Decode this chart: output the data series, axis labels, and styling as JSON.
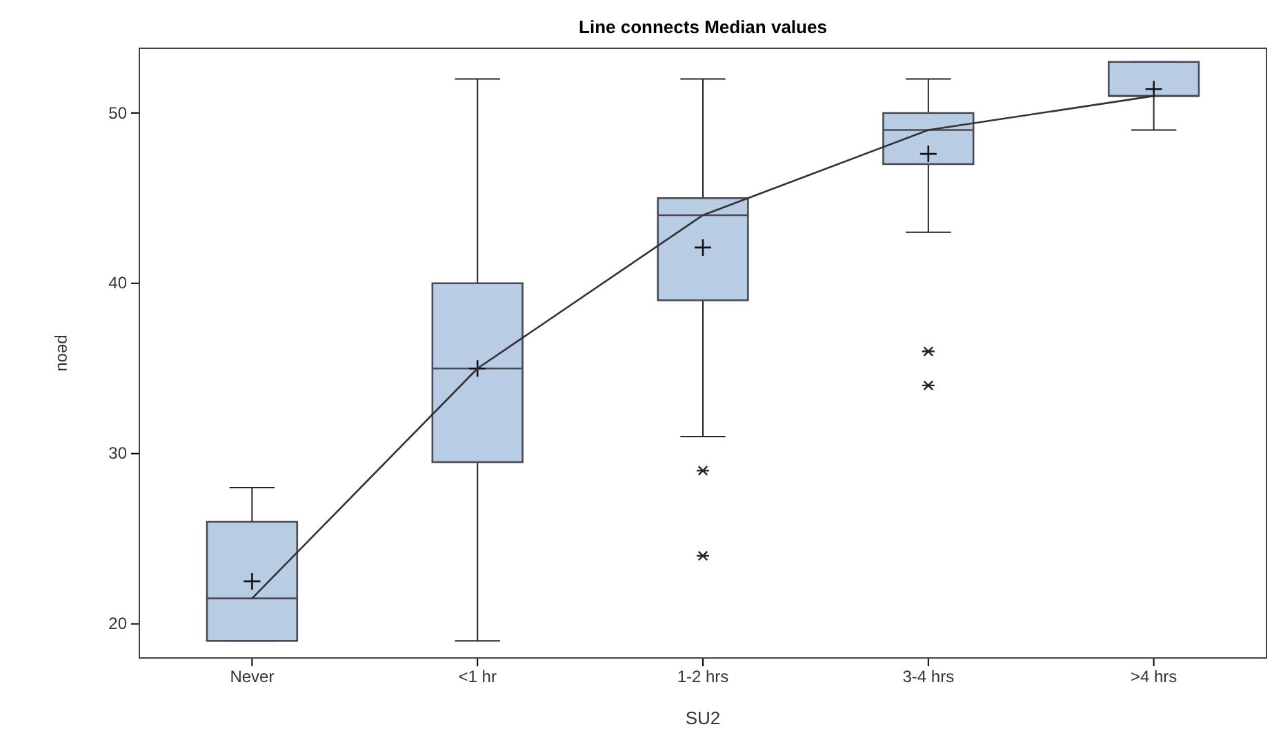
{
  "chart_data": {
    "type": "box",
    "title": "Line connects Median values",
    "xlabel": "SU2",
    "ylabel": "peou",
    "categories": [
      "Never",
      "<1 hr",
      "1-2 hrs",
      "3-4 hrs",
      ">4 hrs"
    ],
    "ylim": [
      18,
      53.8
    ],
    "yticks": [
      20,
      30,
      40,
      50
    ],
    "grid": false,
    "color": "#b8cce4",
    "boxes": [
      {
        "low": 19,
        "q1": 19,
        "median": 21.5,
        "q3": 26,
        "high": 28,
        "mean": 22.5
      },
      {
        "low": 19,
        "q1": 29.5,
        "median": 35,
        "q3": 40,
        "high": 52,
        "mean": 35
      },
      {
        "low": 31,
        "q1": 39,
        "median": 44,
        "q3": 45,
        "high": 52,
        "mean": 42.1,
        "outliers": [
          29,
          24
        ]
      },
      {
        "low": 43,
        "q1": 47,
        "median": 49,
        "q3": 50,
        "high": 52,
        "mean": 47.6,
        "outliers": [
          36,
          34
        ]
      },
      {
        "low": 49,
        "q1": 51,
        "median": 51,
        "q3": 53,
        "high": 53,
        "mean": 51.4
      }
    ],
    "series": [
      {
        "type": "line",
        "color": "#333333",
        "values": [
          21.5,
          35,
          44,
          49,
          51
        ],
        "marker": "none"
      }
    ]
  }
}
